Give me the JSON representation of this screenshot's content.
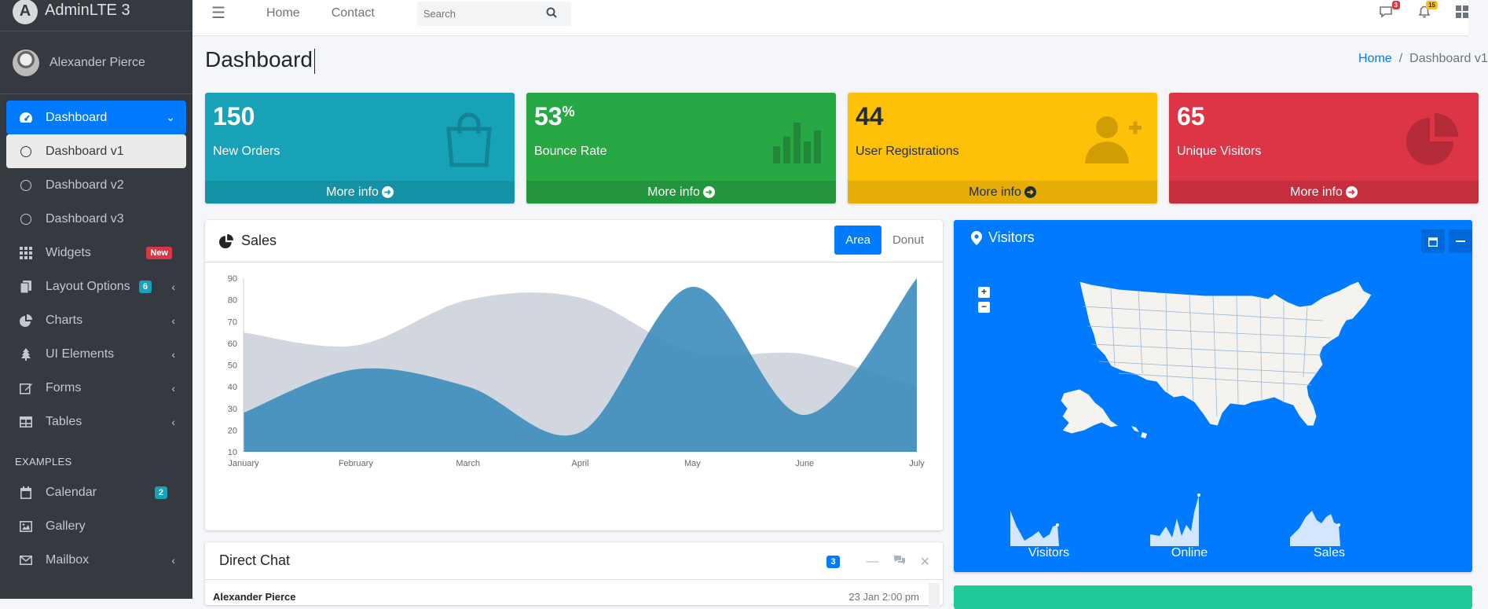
{
  "brand": {
    "name": "AdminLTE 3",
    "logo_letter": "A"
  },
  "user": {
    "name": "Alexander Pierce"
  },
  "sidebar": {
    "items": [
      {
        "label": "Dashboard"
      },
      {
        "label": "Dashboard v1"
      },
      {
        "label": "Dashboard v2"
      },
      {
        "label": "Dashboard v3"
      },
      {
        "label": "Widgets",
        "badge": "New"
      },
      {
        "label": "Layout Options",
        "badge": "6"
      },
      {
        "label": "Charts"
      },
      {
        "label": "UI Elements"
      },
      {
        "label": "Forms"
      },
      {
        "label": "Tables"
      }
    ],
    "header": "EXAMPLES",
    "examples": [
      {
        "label": "Calendar",
        "badge": "2"
      },
      {
        "label": "Gallery"
      },
      {
        "label": "Mailbox"
      }
    ]
  },
  "topbar": {
    "links": [
      "Home",
      "Contact"
    ],
    "search_placeholder": "Search",
    "messages_count": "3",
    "notifications_count": "15"
  },
  "page": {
    "title": "Dashboard",
    "breadcrumb": {
      "home": "Home",
      "separator": "/",
      "current": "Dashboard v1"
    }
  },
  "stats": [
    {
      "value": "150",
      "suffix": "",
      "label": "New Orders",
      "footer": "More info",
      "icon": "shopping-bag-icon",
      "color": "#17a2b8"
    },
    {
      "value": "53",
      "suffix": "%",
      "label": "Bounce Rate",
      "footer": "More info",
      "icon": "bar-chart-icon",
      "color": "#28a745"
    },
    {
      "value": "44",
      "suffix": "",
      "label": "User Registrations",
      "footer": "More info",
      "icon": "user-plus-icon",
      "color": "#ffc107"
    },
    {
      "value": "65",
      "suffix": "",
      "label": "Unique Visitors",
      "footer": "More info",
      "icon": "pie-chart-icon",
      "color": "#dc3545"
    }
  ],
  "sales": {
    "title": "Sales",
    "tabs": [
      "Area",
      "Donut"
    ],
    "active_tab": "Area"
  },
  "chart_data": {
    "type": "area",
    "categories": [
      "January",
      "February",
      "March",
      "April",
      "May",
      "June",
      "July"
    ],
    "series": [
      {
        "values": [
          65,
          59,
          80,
          81,
          56,
          55,
          40
        ],
        "color": "#d2d6de"
      },
      {
        "values": [
          28,
          48,
          40,
          19,
          86,
          27,
          90
        ],
        "color": "#3c8dbc"
      }
    ],
    "ylim": [
      10,
      90
    ],
    "yticks": [
      10,
      20,
      30,
      40,
      50,
      60,
      70,
      80,
      90
    ],
    "grid": false
  },
  "visitors": {
    "title": "Visitors",
    "zoom_in": "+",
    "zoom_out": "−",
    "sparklines": [
      {
        "label": "Visitors"
      },
      {
        "label": "Online"
      },
      {
        "label": "Sales"
      }
    ]
  },
  "direct_chat": {
    "title": "Direct Chat",
    "badge": "3",
    "first_message": {
      "name": "Alexander Pierce",
      "time": "23 Jan 2:00 pm"
    }
  },
  "colors": {
    "primary": "#007bff",
    "sidebar": "#343a40",
    "content_bg": "#f4f6f9"
  }
}
